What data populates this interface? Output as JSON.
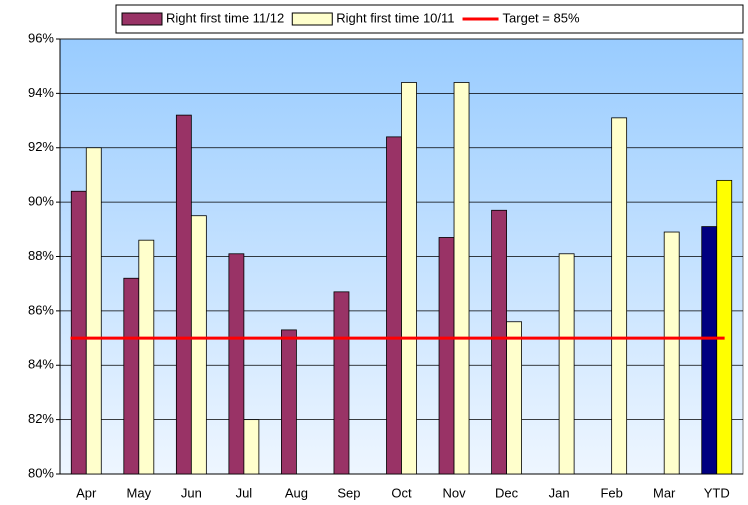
{
  "chart_data": {
    "type": "bar",
    "categories": [
      "Apr",
      "May",
      "Jun",
      "Jul",
      "Aug",
      "Sep",
      "Oct",
      "Nov",
      "Dec",
      "Jan",
      "Feb",
      "Mar",
      "YTD"
    ],
    "series": [
      {
        "name": "Right first time 11/12",
        "color": "#993366",
        "colors": [
          "#993366",
          "#993366",
          "#993366",
          "#993366",
          "#993366",
          "#993366",
          "#993366",
          "#993366",
          "#993366",
          "#993366",
          "#993366",
          "#993366",
          "#000080"
        ],
        "values": [
          90.4,
          87.2,
          93.2,
          88.1,
          85.3,
          86.7,
          92.4,
          88.7,
          89.7,
          null,
          null,
          null,
          89.1
        ]
      },
      {
        "name": "Right first time 10/11",
        "color": "#ffffcc",
        "colors": [
          "#ffffcc",
          "#ffffcc",
          "#ffffcc",
          "#ffffcc",
          "#ffffcc",
          "#ffffcc",
          "#ffffcc",
          "#ffffcc",
          "#ffffcc",
          "#ffffcc",
          "#ffffcc",
          "#ffffcc",
          "#ffff00"
        ],
        "values": [
          92.0,
          88.6,
          89.5,
          82.0,
          null,
          null,
          94.4,
          94.4,
          85.6,
          88.1,
          93.1,
          88.9,
          90.8
        ]
      }
    ],
    "target": {
      "name": "Target = 85%",
      "color": "#ff0000",
      "value": 85
    },
    "ylim": [
      80,
      96
    ],
    "yticks": [
      {
        "value": 80,
        "label": "80%"
      },
      {
        "value": 82,
        "label": "82%"
      },
      {
        "value": 84,
        "label": "84%"
      },
      {
        "value": 86,
        "label": "86%"
      },
      {
        "value": 88,
        "label": "88%"
      },
      {
        "value": 90,
        "label": "90%"
      },
      {
        "value": 92,
        "label": "92%"
      },
      {
        "value": 94,
        "label": "94%"
      },
      {
        "value": 96,
        "label": "96%"
      }
    ],
    "grid": true
  }
}
